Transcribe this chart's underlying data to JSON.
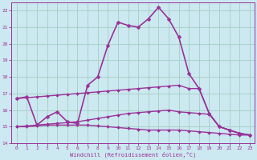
{
  "background_color": "#cce8f0",
  "grid_color": "#99ccbb",
  "line_color": "#993399",
  "spine_color": "#993399",
  "xlim": [
    -0.5,
    23.5
  ],
  "ylim": [
    14,
    22.5
  ],
  "xlabel": "Windchill (Refroidissement éolien,°C)",
  "yticks": [
    14,
    15,
    16,
    17,
    18,
    19,
    20,
    21,
    22
  ],
  "xticks": [
    0,
    1,
    2,
    3,
    4,
    5,
    6,
    7,
    8,
    9,
    10,
    11,
    12,
    13,
    14,
    15,
    16,
    17,
    18,
    19,
    20,
    21,
    22,
    23
  ],
  "series": [
    {
      "x": [
        0,
        1,
        2,
        3,
        4,
        5,
        6,
        7,
        8,
        9,
        10,
        11,
        12,
        13,
        14,
        15,
        16,
        17,
        18,
        19,
        20,
        21,
        22,
        23
      ],
      "y": [
        16.7,
        16.8,
        15.1,
        15.6,
        15.9,
        15.3,
        15.2,
        17.5,
        18.0,
        19.9,
        21.3,
        21.1,
        21.0,
        21.5,
        22.2,
        21.5,
        20.4,
        18.2,
        17.3,
        15.8,
        15.0,
        14.8,
        14.6,
        14.5
      ],
      "linewidth": 1.2,
      "markersize": 2.5
    },
    {
      "x": [
        0,
        1,
        2,
        3,
        4,
        5,
        6,
        7,
        8,
        9,
        10,
        11,
        12,
        13,
        14,
        15,
        16,
        17,
        18,
        19,
        20,
        21,
        22,
        23
      ],
      "y": [
        16.7,
        16.75,
        16.8,
        16.85,
        16.9,
        16.95,
        17.0,
        17.05,
        17.1,
        17.15,
        17.2,
        17.25,
        17.3,
        17.35,
        17.4,
        17.45,
        17.5,
        17.3,
        17.3,
        15.8,
        15.0,
        14.8,
        14.6,
        14.5
      ],
      "linewidth": 1.0,
      "markersize": 2.0
    },
    {
      "x": [
        0,
        1,
        2,
        3,
        4,
        5,
        6,
        7,
        8,
        9,
        10,
        11,
        12,
        13,
        14,
        15,
        16,
        17,
        18,
        19,
        20,
        21,
        22,
        23
      ],
      "y": [
        15.0,
        15.05,
        15.1,
        15.15,
        15.2,
        15.25,
        15.3,
        15.4,
        15.5,
        15.6,
        15.7,
        15.8,
        15.85,
        15.9,
        15.95,
        16.0,
        15.9,
        15.85,
        15.8,
        15.75,
        15.0,
        14.8,
        14.6,
        14.5
      ],
      "linewidth": 1.0,
      "markersize": 2.0
    },
    {
      "x": [
        0,
        1,
        2,
        3,
        4,
        5,
        6,
        7,
        8,
        9,
        10,
        11,
        12,
        13,
        14,
        15,
        16,
        17,
        18,
        19,
        20,
        21,
        22,
        23
      ],
      "y": [
        15.0,
        15.0,
        15.05,
        15.1,
        15.1,
        15.1,
        15.1,
        15.1,
        15.05,
        15.0,
        14.95,
        14.9,
        14.85,
        14.8,
        14.8,
        14.8,
        14.8,
        14.75,
        14.7,
        14.65,
        14.6,
        14.55,
        14.5,
        14.5
      ],
      "linewidth": 1.0,
      "markersize": 2.0
    }
  ]
}
